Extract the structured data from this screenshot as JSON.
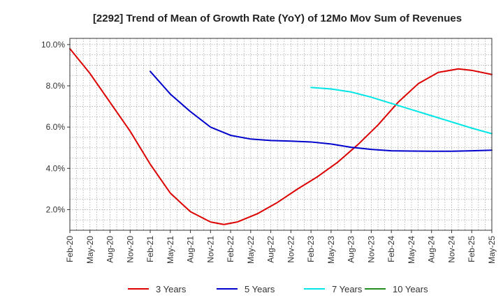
{
  "chart_data": {
    "type": "line",
    "title": "[2292]  Trend of Mean of Growth Rate (YoY) of 12Mo Mov Sum of Revenues",
    "xlabel": "",
    "ylabel": "",
    "x_tick_labels": [
      "Feb-20",
      "May-20",
      "Aug-20",
      "Nov-20",
      "Feb-21",
      "May-21",
      "Aug-21",
      "Nov-21",
      "Feb-22",
      "May-22",
      "Aug-22",
      "Nov-22",
      "Feb-23",
      "May-23",
      "Aug-23",
      "Nov-23",
      "Feb-24",
      "May-24",
      "Aug-24",
      "Nov-24",
      "Feb-25",
      "May-25"
    ],
    "y_tick_labels": [
      "2.0%",
      "4.0%",
      "6.0%",
      "8.0%",
      "10.0%"
    ],
    "y_ticks": [
      2.0,
      4.0,
      6.0,
      8.0,
      10.0
    ],
    "ylim": [
      1.0,
      10.3
    ],
    "x_range_months": [
      0,
      63
    ],
    "grid": true,
    "legend_position": "bottom",
    "series": [
      {
        "name": "3 Years",
        "color": "#dd0000",
        "points": [
          [
            0,
            9.8
          ],
          [
            3,
            8.6
          ],
          [
            6,
            7.2
          ],
          [
            9,
            5.8
          ],
          [
            12,
            4.2
          ],
          [
            15,
            2.8
          ],
          [
            18,
            1.9
          ],
          [
            21,
            1.4
          ],
          [
            23,
            1.28
          ],
          [
            25,
            1.4
          ],
          [
            28,
            1.8
          ],
          [
            31,
            2.35
          ],
          [
            34,
            3.0
          ],
          [
            37,
            3.6
          ],
          [
            40,
            4.3
          ],
          [
            43,
            5.15
          ],
          [
            46,
            6.1
          ],
          [
            49,
            7.2
          ],
          [
            52,
            8.1
          ],
          [
            55,
            8.65
          ],
          [
            58,
            8.82
          ],
          [
            60,
            8.75
          ],
          [
            63,
            8.55
          ]
        ]
      },
      {
        "name": "5 Years",
        "color": "#0000cc",
        "points": [
          [
            12,
            8.7
          ],
          [
            15,
            7.6
          ],
          [
            18,
            6.75
          ],
          [
            21,
            6.0
          ],
          [
            24,
            5.6
          ],
          [
            27,
            5.42
          ],
          [
            30,
            5.35
          ],
          [
            33,
            5.32
          ],
          [
            36,
            5.28
          ],
          [
            39,
            5.18
          ],
          [
            42,
            5.02
          ],
          [
            45,
            4.92
          ],
          [
            48,
            4.85
          ],
          [
            51,
            4.84
          ],
          [
            54,
            4.83
          ],
          [
            57,
            4.83
          ],
          [
            60,
            4.85
          ],
          [
            63,
            4.88
          ]
        ]
      },
      {
        "name": "7 Years",
        "color": "#00e5e5",
        "points": [
          [
            36,
            7.92
          ],
          [
            39,
            7.85
          ],
          [
            42,
            7.7
          ],
          [
            45,
            7.45
          ],
          [
            48,
            7.15
          ],
          [
            51,
            6.85
          ],
          [
            54,
            6.55
          ],
          [
            57,
            6.25
          ],
          [
            60,
            5.95
          ],
          [
            63,
            5.68
          ]
        ]
      },
      {
        "name": "10 Years",
        "color": "#228b22",
        "points": []
      }
    ]
  }
}
